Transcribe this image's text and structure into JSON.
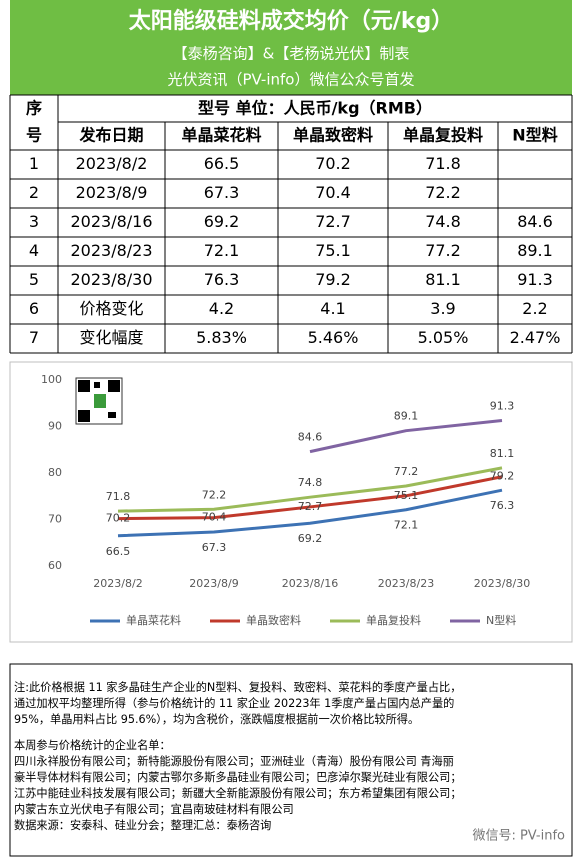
{
  "header": {
    "title": "太阳能级硅料成交均价（元/kg）",
    "line1": "【泰杨咨询】&【老杨说光伏】制表",
    "line2": "光伏资讯（PV-info）微信公众号首发"
  },
  "table": {
    "corner": [
      "序",
      "号"
    ],
    "unit_header": "型号  单位：人民币/kg（RMB）",
    "columns": [
      "发布日期",
      "单晶菜花料",
      "单晶致密料",
      "单晶复投料",
      "N型料"
    ],
    "rows": [
      [
        "1",
        "2023/8/2",
        "66.5",
        "70.2",
        "71.8",
        null
      ],
      [
        "2",
        "2023/8/9",
        "67.3",
        "70.4",
        "72.2",
        null
      ],
      [
        "3",
        "2023/8/16",
        "69.2",
        "72.7",
        "74.8",
        "84.6"
      ],
      [
        "4",
        "2023/8/23",
        "72.1",
        "75.1",
        "77.2",
        "89.1"
      ],
      [
        "5",
        "2023/8/30",
        "76.3",
        "79.2",
        "81.1",
        "91.3"
      ],
      [
        "6",
        "价格变化",
        "4.2",
        "4.1",
        "3.9",
        "2.2"
      ],
      [
        "7",
        "变化幅度",
        "5.83%",
        "5.46%",
        "5.05%",
        "2.47%"
      ]
    ]
  },
  "chart_data": {
    "type": "line",
    "categories": [
      "2023/8/2",
      "2023/8/9",
      "2023/8/16",
      "2023/8/23",
      "2023/8/30"
    ],
    "ylim": [
      60,
      100
    ],
    "yticks": [
      60,
      70,
      80,
      90,
      100
    ],
    "grid": false,
    "legend": "bottom",
    "series": [
      {
        "name": "单晶菜花料",
        "color": "#3d72b4",
        "values": [
          66.5,
          67.3,
          69.2,
          72.1,
          76.3
        ]
      },
      {
        "name": "单晶致密料",
        "color": "#c0392b",
        "values": [
          70.2,
          70.4,
          72.7,
          75.1,
          79.2
        ]
      },
      {
        "name": "单晶复投料",
        "color": "#9bbb59",
        "values": [
          71.8,
          72.2,
          74.8,
          77.2,
          81.1
        ]
      },
      {
        "name": "N型料",
        "color": "#8064a2",
        "values": [
          null,
          null,
          84.6,
          89.1,
          91.3
        ]
      }
    ]
  },
  "notes": {
    "lines": [
      "注:此价格根据 11 家多晶硅生产企业的N型料、复投料、致密料、菜花料的季度产量占比，",
      "通过加权平均整理所得（参与价格统计的 11 家企业 20223年 1季度产量占国内总产量的",
      "95%，单晶用料占比 95.6%），均为含税价，涨跌幅度根据前一次价格比较所得。"
    ],
    "list_title": "本周参与价格统计的企业名单：",
    "companies": [
      "四川永祥股份有限公司；新特能源股份有限公司；亚洲硅业（青海）股份有限公司   青海丽",
      "豪半导体材料有限公司；内蒙古鄂尔多斯多晶硅业有限公司；巴彦淖尔聚光硅业有限公司；",
      "江苏中能硅业科技发展有限公司；新疆大全新能源股份有限公司；东方希望集团有限公司；",
      "内蒙古东立光伏电子有限公司；宜昌南玻硅材料有限公司"
    ],
    "source": "数据来源：安泰科、硅业分会；整理汇总：泰杨咨询",
    "watermark": "微信号: PV-info"
  }
}
